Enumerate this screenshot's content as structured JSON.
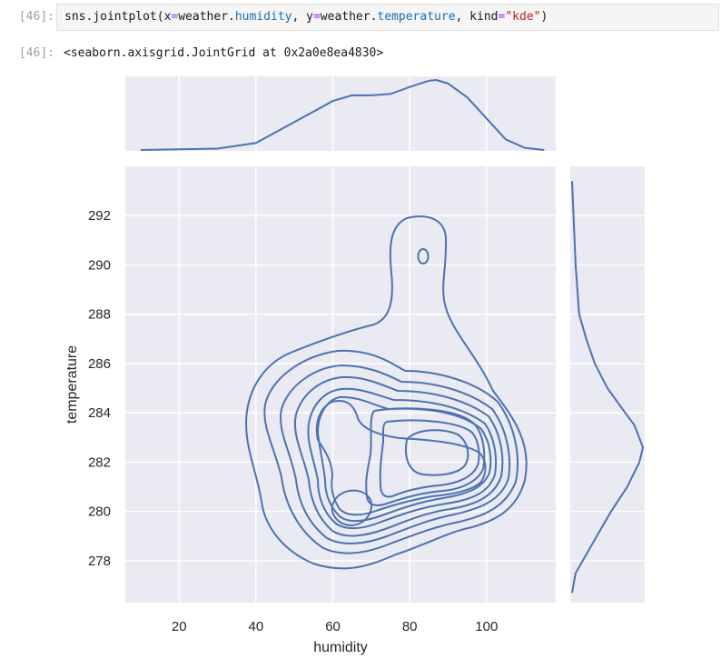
{
  "cell": {
    "in_prompt": "[46]:",
    "out_prompt": "[46]:",
    "code": {
      "fn": "sns.jointplot(",
      "kw_x": "x",
      "eq1": "=",
      "val_x_prefix": "weather.",
      "val_x_attr": "humidity",
      "sep1": ", ",
      "kw_y": "y",
      "eq2": "=",
      "val_y_prefix": "weather.",
      "val_y_attr": "temperature",
      "sep2": ", ",
      "kw_kind": "kind",
      "eq3": "=",
      "val_kind": "\"kde\"",
      "close": ")"
    },
    "output_repr": "<seaborn.axisgrid.JointGrid at 0x2a0e8ea4830>"
  },
  "chart_data": {
    "type": "kde",
    "description": "joint kernel density contour plot with marginal density curves",
    "xlabel": "humidity",
    "ylabel": "temperature",
    "xlim": [
      6,
      118
    ],
    "ylim": [
      276.3,
      294.0
    ],
    "x_ticks": [
      20,
      40,
      60,
      80,
      100
    ],
    "y_ticks": [
      278,
      280,
      282,
      284,
      286,
      288,
      290,
      292
    ],
    "grid": true,
    "line_color": "#4c72b0",
    "background_color": "#eaeaf2",
    "joint_density_peaks": [
      {
        "humidity": 87,
        "temperature": 282.3
      },
      {
        "humidity": 66,
        "temperature": 280.3
      },
      {
        "humidity": 84,
        "temperature": 290.3
      }
    ],
    "marginal_x": {
      "x": [
        10,
        20,
        30,
        40,
        45,
        50,
        55,
        60,
        65,
        70,
        75,
        80,
        85,
        87,
        90,
        95,
        100,
        105,
        110,
        115
      ],
      "density": [
        0.0,
        0.01,
        0.02,
        0.1,
        0.25,
        0.4,
        0.55,
        0.7,
        0.78,
        0.78,
        0.8,
        0.9,
        0.99,
        1.0,
        0.95,
        0.75,
        0.45,
        0.15,
        0.03,
        0.0
      ]
    },
    "marginal_y": {
      "y": [
        276.7,
        277.5,
        278,
        279,
        280,
        281,
        282,
        282.6,
        283.5,
        284,
        285,
        286,
        287,
        288,
        290,
        292,
        293.4
      ],
      "density": [
        0.0,
        0.05,
        0.15,
        0.35,
        0.55,
        0.78,
        0.95,
        1.0,
        0.88,
        0.75,
        0.5,
        0.32,
        0.2,
        0.1,
        0.05,
        0.02,
        0.0
      ]
    }
  }
}
